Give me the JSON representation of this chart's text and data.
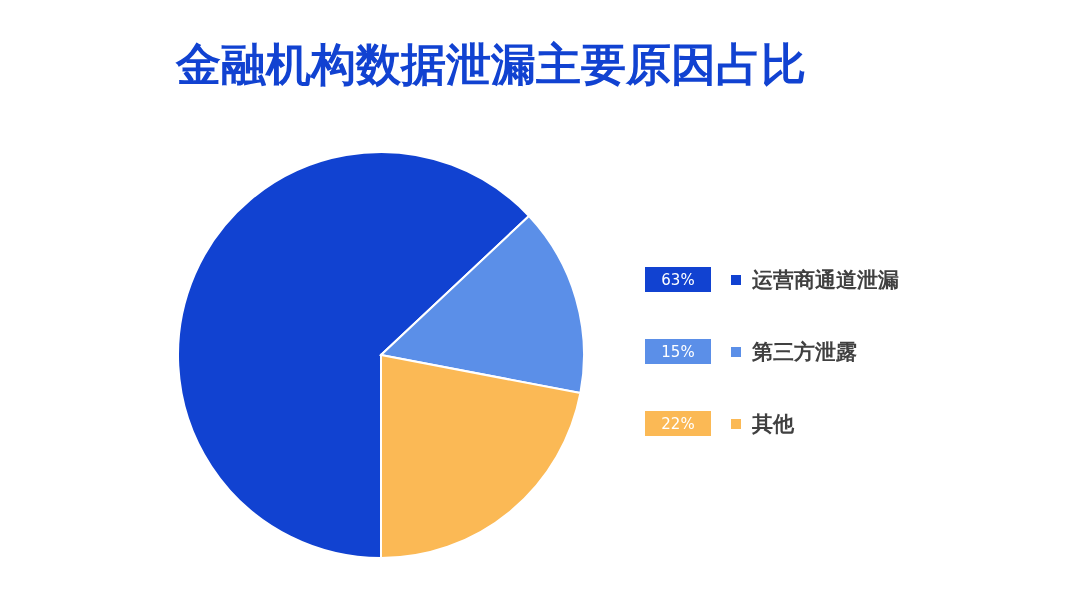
{
  "chart_data": {
    "type": "pie",
    "title": "金融机构数据泄漏主要原因占比",
    "categories": [
      "运营商通道泄漏",
      "第三方泄露",
      "其他"
    ],
    "values": [
      63,
      15,
      22
    ],
    "value_labels": [
      "63%",
      "15%",
      "22%"
    ],
    "colors": [
      "#1142d1",
      "#5b8fe8",
      "#fbb955"
    ],
    "legend": "right"
  }
}
